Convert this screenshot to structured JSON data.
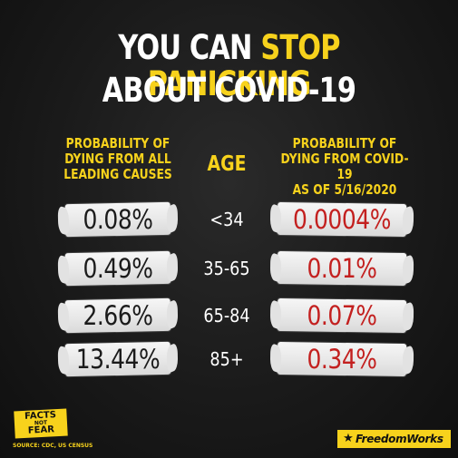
{
  "title": {
    "line1_prefix": "YOU CAN",
    "line1_highlight": "STOP PANICKING",
    "line2": "ABOUT COVID-19"
  },
  "columns": {
    "left_header": [
      "PROBABILITY OF",
      "DYING FROM ALL",
      "LEADING CAUSES"
    ],
    "mid_header": "AGE",
    "right_header": [
      "PROBABILITY OF",
      "DYING FROM COVID-19",
      "AS OF 5/16/2020"
    ]
  },
  "rows": [
    {
      "all_causes": "0.08%",
      "age": "<34",
      "covid": "0.0004%"
    },
    {
      "all_causes": "0.49%",
      "age": "35-65",
      "covid": "0.01%"
    },
    {
      "all_causes": "2.66%",
      "age": "65-84",
      "covid": "0.07%"
    },
    {
      "all_causes": "13.44%",
      "age": "85+",
      "covid": "0.34%"
    }
  ],
  "footer": {
    "logo_line1": "FACTS",
    "logo_line2": "NOT",
    "logo_line3": "FEAR",
    "source": "SOURCE: CDC, US CENSUS",
    "brand": "FreedomWorks",
    "brand_icon": "star-icon"
  },
  "colors": {
    "background": "#161616",
    "accent_yellow": "#f7d21c",
    "covid_red": "#c3201f",
    "paint_white": "#eeeeee"
  }
}
